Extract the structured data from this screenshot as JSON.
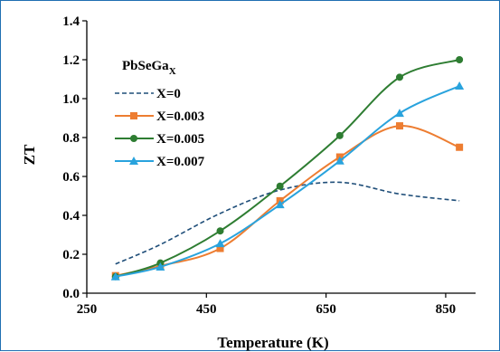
{
  "chart_data": {
    "type": "line",
    "xlabel": "Temperature (K)",
    "ylabel": "ZT",
    "xlim": [
      250,
      900
    ],
    "ylim": [
      0,
      1.4
    ],
    "xticks": [
      250,
      450,
      650,
      850
    ],
    "yticks": [
      0.0,
      0.2,
      0.4,
      0.6,
      0.8,
      1.0,
      1.2,
      1.4
    ],
    "ytick_labels": [
      "0.0",
      "0.2",
      "0.4",
      "0.6",
      "0.8",
      "1.0",
      "1.2",
      "1.4"
    ],
    "grid": false,
    "legend_title": {
      "base": "PbSeGa",
      "subscript": "X"
    },
    "legend_position": "top-left",
    "series": [
      {
        "name": "X=0",
        "color": "#1f4e79",
        "dashed": true,
        "marker": "none",
        "x": [
          298,
          373,
          473,
          573,
          673,
          773,
          873
        ],
        "y": [
          0.15,
          0.25,
          0.41,
          0.53,
          0.57,
          0.51,
          0.475
        ]
      },
      {
        "name": "X=0.003",
        "color": "#ed7d31",
        "dashed": false,
        "marker": "square",
        "x": [
          298,
          373,
          473,
          573,
          673,
          773,
          873
        ],
        "y": [
          0.09,
          0.14,
          0.23,
          0.475,
          0.7,
          0.86,
          0.75
        ]
      },
      {
        "name": "X=0.005",
        "color": "#2e7d32",
        "dashed": false,
        "marker": "circle",
        "x": [
          298,
          373,
          473,
          573,
          673,
          773,
          873
        ],
        "y": [
          0.085,
          0.155,
          0.32,
          0.55,
          0.81,
          1.11,
          1.2
        ]
      },
      {
        "name": "X=0.007",
        "color": "#29a3dd",
        "dashed": false,
        "marker": "triangle",
        "x": [
          298,
          373,
          473,
          573,
          673,
          773,
          873
        ],
        "y": [
          0.085,
          0.135,
          0.255,
          0.455,
          0.68,
          0.925,
          1.065
        ]
      }
    ]
  }
}
